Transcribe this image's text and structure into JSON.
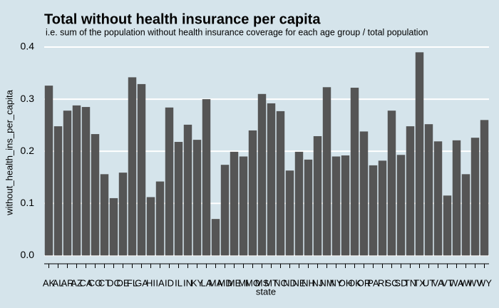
{
  "chart_data": {
    "type": "bar",
    "title": "Total without health insurance per capita",
    "subtitle": "i.e. sum of the population without health insurance coverage for each age group / total population",
    "x_label": "state",
    "y_label": "without_health_ins_per_capita",
    "categories": [
      "AK",
      "AL",
      "AR",
      "AZ",
      "CA",
      "CO",
      "CT",
      "DC",
      "DE",
      "FL",
      "GA",
      "HI",
      "IA",
      "ID",
      "IL",
      "IN",
      "KY",
      "LA",
      "MA",
      "MD",
      "ME",
      "MI",
      "MO",
      "MS",
      "MT",
      "NC",
      "ND",
      "NE",
      "NH",
      "NJ",
      "NM",
      "NY",
      "OH",
      "OK",
      "OR",
      "PA",
      "RI",
      "SC",
      "SD",
      "TN",
      "TX",
      "UT",
      "VA",
      "VT",
      "WA",
      "WI",
      "WV",
      "WY"
    ],
    "values": [
      0.326,
      0.248,
      0.278,
      0.288,
      0.285,
      0.233,
      0.156,
      0.11,
      0.159,
      0.342,
      0.329,
      0.112,
      0.142,
      0.284,
      0.218,
      0.251,
      0.222,
      0.3,
      0.07,
      0.174,
      0.199,
      0.19,
      0.24,
      0.31,
      0.292,
      0.277,
      0.163,
      0.199,
      0.184,
      0.229,
      0.323,
      0.19,
      0.192,
      0.322,
      0.238,
      0.173,
      0.182,
      0.278,
      0.193,
      0.248,
      0.39,
      0.252,
      0.219,
      0.115,
      0.221,
      0.156,
      0.226,
      0.26
    ],
    "color": "#555555",
    "ylim": [
      -0.016,
      0.411
    ],
    "yticks": [
      {
        "value": 0,
        "label": "0.0"
      },
      0.1,
      0.2,
      0.3,
      0.4
    ],
    "grid": true
  }
}
